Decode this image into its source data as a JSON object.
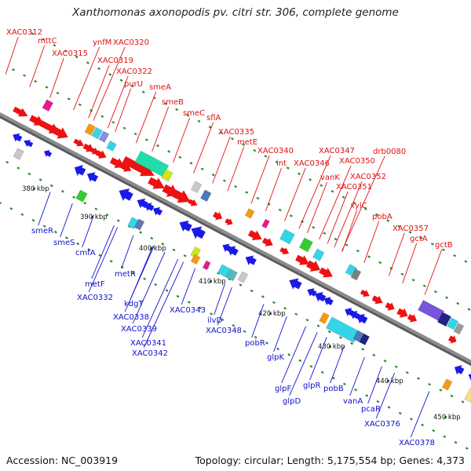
{
  "title": "Xanthomonas axonopodis pv. citri str. 306, complete genome",
  "accession": "Accession: NC_003919",
  "summary": "Topology: circular; Length: 5,175,554 bp; Genes: 4,373",
  "colors": {
    "background": "#ffffff",
    "backbone": "#8c8c8c",
    "forward_label": "#e01010",
    "reverse_label": "#1010cc",
    "forward_arrow": "#ee1111",
    "reverse_arrow": "#1a1ae6",
    "tick": "#2a8a2a",
    "scale_text": "#111111"
  },
  "scale_ticks": [
    "380 kbp",
    "390 kbp",
    "400 kbp",
    "410 kbp",
    "420 kbp",
    "430 kbp",
    "440 kbp",
    "450 kbp"
  ],
  "forward_labels": [
    "XAC0312",
    "mttC",
    "XAC0315",
    "ynfM",
    "XAC0320",
    "XAC0319",
    "XAC0322",
    "purU",
    "smeA",
    "smeB",
    "smeC",
    "sflA",
    "XAC0335",
    "metE",
    "XAC0340",
    "int",
    "XAC0346",
    "XAC0347",
    "drb0080",
    "XAC0350",
    "vanK",
    "XAC0352",
    "XAC0351",
    "xylC",
    "pobA",
    "XAC0357",
    "gctA",
    "gctB"
  ],
  "reverse_labels": [
    "smeR",
    "smeS",
    "cmfA",
    "metF",
    "metR",
    "XAC0332",
    "kdgT",
    "XAC0338",
    "XAC0339",
    "XAC0343",
    "XAC0341",
    "XAC0342",
    "ilvD",
    "XAC0348",
    "pobR",
    "glpK",
    "glpF",
    "glpR",
    "glpD",
    "pobB",
    "vanA",
    "pcaR",
    "XAC0376",
    "XAC0378"
  ]
}
